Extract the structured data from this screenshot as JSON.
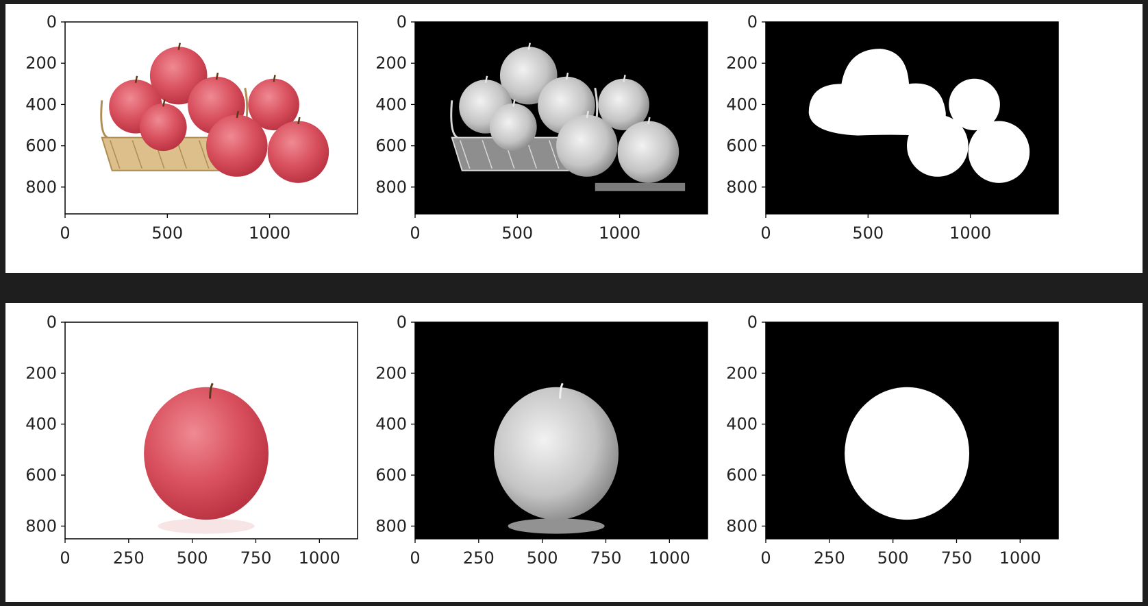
{
  "chart_data": [
    {
      "type": "image",
      "panel": "photo",
      "row": 1,
      "content": "red apples beside and in a wicker basket",
      "xlim": [
        0,
        1430
      ],
      "ylim": [
        930,
        0
      ],
      "xticks": [
        "0",
        "500",
        "1000"
      ],
      "yticks": [
        "0",
        "200",
        "400",
        "600",
        "800"
      ],
      "colormap": "rgb"
    },
    {
      "type": "image",
      "panel": "grayscale",
      "row": 1,
      "content": "inverted grayscale of the apples and basket",
      "xlim": [
        0,
        1430
      ],
      "ylim": [
        930,
        0
      ],
      "xticks": [
        "0",
        "500",
        "1000"
      ],
      "yticks": [
        "0",
        "200",
        "400",
        "600",
        "800"
      ],
      "colormap": "gray"
    },
    {
      "type": "image",
      "panel": "mask",
      "row": 1,
      "content": "binary mask of the apples",
      "xlim": [
        0,
        1430
      ],
      "ylim": [
        930,
        0
      ],
      "xticks": [
        "0",
        "500",
        "1000"
      ],
      "yticks": [
        "0",
        "200",
        "400",
        "600",
        "800"
      ],
      "colormap": "binary"
    },
    {
      "type": "image",
      "panel": "photo",
      "row": 2,
      "content": "single red apple",
      "xlim": [
        0,
        1150
      ],
      "ylim": [
        850,
        0
      ],
      "xticks": [
        "0",
        "250",
        "500",
        "750",
        "1000"
      ],
      "yticks": [
        "0",
        "200",
        "400",
        "600",
        "800"
      ],
      "colormap": "rgb"
    },
    {
      "type": "image",
      "panel": "grayscale",
      "row": 2,
      "content": "inverted grayscale of the apple",
      "xlim": [
        0,
        1150
      ],
      "ylim": [
        850,
        0
      ],
      "xticks": [
        "0",
        "250",
        "500",
        "750",
        "1000"
      ],
      "yticks": [
        "0",
        "200",
        "400",
        "600",
        "800"
      ],
      "colormap": "gray"
    },
    {
      "type": "image",
      "panel": "mask",
      "row": 2,
      "content": "binary mask of the apple",
      "xlim": [
        0,
        1150
      ],
      "ylim": [
        850,
        0
      ],
      "xticks": [
        "0",
        "250",
        "500",
        "750",
        "1000"
      ],
      "yticks": [
        "0",
        "200",
        "400",
        "600",
        "800"
      ],
      "colormap": "binary"
    }
  ],
  "colors": {
    "background": "#1e1e1e",
    "figure": "#ffffff",
    "apple_red": "#d9505e",
    "apple_dark": "#b7303f",
    "basket": "#dcbf8a",
    "basket_dark": "#b08c52"
  }
}
